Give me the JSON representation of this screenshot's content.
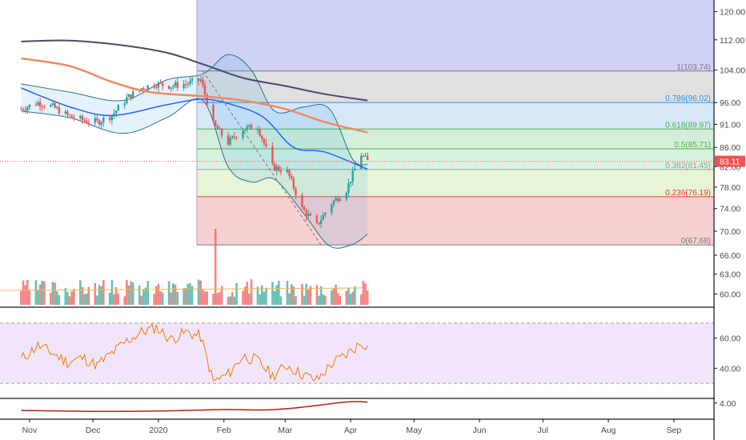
{
  "chart_data": [
    {
      "type": "candlestick",
      "panel": "price",
      "title": "",
      "y_scale": "log",
      "y_ticks": [
        "120.00",
        "112.00",
        "104.00",
        "96.00",
        "91.00",
        "86.00",
        "82.00",
        "78.00",
        "74.00",
        "70.00",
        "66.00",
        "63.00",
        "60.00"
      ],
      "x_ticks": [
        "Nov",
        "Dec",
        "2020",
        "Feb",
        "Mar",
        "Apr",
        "May",
        "Jun",
        "Jul",
        "Aug",
        "Sep"
      ],
      "last_price": {
        "label": "83.11",
        "value": 83.11,
        "color": "#ef5350"
      },
      "ohlc_closes": [
        {
          "date": "2019-10-28",
          "close": 94.5
        },
        {
          "date": "2019-11-05",
          "close": 96.0
        },
        {
          "date": "2019-11-12",
          "close": 95.0
        },
        {
          "date": "2019-11-19",
          "close": 93.0
        },
        {
          "date": "2019-11-26",
          "close": 92.0
        },
        {
          "date": "2019-12-03",
          "close": 91.5
        },
        {
          "date": "2019-12-10",
          "close": 93.0
        },
        {
          "date": "2019-12-17",
          "close": 97.0
        },
        {
          "date": "2019-12-24",
          "close": 99.5
        },
        {
          "date": "2019-12-31",
          "close": 100.5
        },
        {
          "date": "2020-01-07",
          "close": 100.0
        },
        {
          "date": "2020-01-14",
          "close": 100.5
        },
        {
          "date": "2020-01-21",
          "close": 101.5
        },
        {
          "date": "2020-01-27",
          "close": 91.0
        },
        {
          "date": "2020-02-03",
          "close": 87.0
        },
        {
          "date": "2020-02-10",
          "close": 90.0
        },
        {
          "date": "2020-02-17",
          "close": 90.5
        },
        {
          "date": "2020-02-24",
          "close": 82.0
        },
        {
          "date": "2020-03-02",
          "close": 81.0
        },
        {
          "date": "2020-03-09",
          "close": 74.0
        },
        {
          "date": "2020-03-16",
          "close": 71.0
        },
        {
          "date": "2020-03-23",
          "close": 75.0
        },
        {
          "date": "2020-03-30",
          "close": 77.5
        },
        {
          "date": "2020-04-06",
          "close": 84.5
        },
        {
          "date": "2020-04-09",
          "close": 83.11
        }
      ],
      "bollinger_upper": [
        {
          "date": "2019-10-28",
          "value": 100.5
        },
        {
          "date": "2019-11-20",
          "value": 98.5
        },
        {
          "date": "2019-12-15",
          "value": 96.5
        },
        {
          "date": "2020-01-05",
          "value": 101.5
        },
        {
          "date": "2020-01-22",
          "value": 103.0
        },
        {
          "date": "2020-02-03",
          "value": 108.0
        },
        {
          "date": "2020-02-14",
          "value": 104.0
        },
        {
          "date": "2020-02-25",
          "value": 94.0
        },
        {
          "date": "2020-03-10",
          "value": 95.0
        },
        {
          "date": "2020-03-22",
          "value": 94.5
        },
        {
          "date": "2020-04-02",
          "value": 83.5
        },
        {
          "date": "2020-04-09",
          "value": 82.5
        }
      ],
      "bollinger_lower": [
        {
          "date": "2019-10-28",
          "value": 94.0
        },
        {
          "date": "2019-11-20",
          "value": 92.5
        },
        {
          "date": "2019-12-15",
          "value": 89.0
        },
        {
          "date": "2020-01-05",
          "value": 92.5
        },
        {
          "date": "2020-01-22",
          "value": 96.5
        },
        {
          "date": "2020-02-03",
          "value": 82.0
        },
        {
          "date": "2020-02-14",
          "value": 79.0
        },
        {
          "date": "2020-02-25",
          "value": 79.5
        },
        {
          "date": "2020-03-10",
          "value": 73.0
        },
        {
          "date": "2020-03-22",
          "value": 67.5
        },
        {
          "date": "2020-04-02",
          "value": 67.8
        },
        {
          "date": "2020-04-09",
          "value": 69.5
        }
      ],
      "ma_long": [
        {
          "date": "2019-10-28",
          "value": 111.5
        },
        {
          "date": "2019-11-20",
          "value": 111.8
        },
        {
          "date": "2019-12-15",
          "value": 110.5
        },
        {
          "date": "2020-01-05",
          "value": 108.5
        },
        {
          "date": "2020-01-22",
          "value": 105.5
        },
        {
          "date": "2020-02-10",
          "value": 102.0
        },
        {
          "date": "2020-03-01",
          "value": 100.0
        },
        {
          "date": "2020-03-20",
          "value": 98.0
        },
        {
          "date": "2020-04-09",
          "value": 96.5
        }
      ],
      "ma_mid": [
        {
          "date": "2019-10-28",
          "value": 107.0
        },
        {
          "date": "2019-11-20",
          "value": 105.0
        },
        {
          "date": "2019-12-10",
          "value": 101.0
        },
        {
          "date": "2019-12-28",
          "value": 98.5
        },
        {
          "date": "2020-01-22",
          "value": 97.5
        },
        {
          "date": "2020-02-10",
          "value": 96.5
        },
        {
          "date": "2020-03-01",
          "value": 94.5
        },
        {
          "date": "2020-03-20",
          "value": 91.5
        },
        {
          "date": "2020-04-09",
          "value": 89.2
        }
      ],
      "ma_short": [
        {
          "date": "2019-10-28",
          "value": 99.5
        },
        {
          "date": "2019-11-20",
          "value": 95.0
        },
        {
          "date": "2019-12-10",
          "value": 93.0
        },
        {
          "date": "2020-01-05",
          "value": 95.5
        },
        {
          "date": "2020-01-22",
          "value": 96.8
        },
        {
          "date": "2020-02-05",
          "value": 95.5
        },
        {
          "date": "2020-02-20",
          "value": 92.5
        },
        {
          "date": "2020-03-05",
          "value": 86.0
        },
        {
          "date": "2020-03-20",
          "value": 85.0
        },
        {
          "date": "2020-04-09",
          "value": 81.5
        }
      ],
      "fib_retracement": {
        "levels": [
          {
            "label": "1(103.74)",
            "value": 103.74,
            "color": "#787b86",
            "fill": "#e0e0e0"
          },
          {
            "label": "0.786(96.02)",
            "value": 96.02,
            "color": "#2196f3",
            "fill": "#d6e8f5"
          },
          {
            "label": "0.618(89.97)",
            "value": 89.97,
            "color": "#4caf50",
            "fill": "#d4efd9"
          },
          {
            "label": "0.5(85.71)",
            "value": 85.71,
            "color": "#4caf50",
            "fill": "#d9f2df"
          },
          {
            "label": "0.382(81.45)",
            "value": 81.45,
            "color": "#9e9e9e",
            "fill": "#e8f4d6"
          },
          {
            "label": "0.236(76.19)",
            "value": 76.19,
            "color": "#e53935",
            "fill": "#f6d1d1"
          },
          {
            "label": "0(67.68)",
            "value": 67.68,
            "color": "#787b86",
            "fill": ""
          }
        ],
        "top_zone_fill": "#d0d2f4"
      }
    },
    {
      "type": "bar",
      "panel": "volume",
      "up_color": "#26a69a",
      "down_color": "#ef5350"
    },
    {
      "type": "line",
      "panel": "oscillator",
      "y_ticks": [
        "60.00",
        "40.00"
      ],
      "upper_band": 70,
      "lower_band": 30,
      "band_fill": "#f1e5fc",
      "line_color": "#f57c00",
      "values": [
        {
          "date": "2019-10-28",
          "value": 46
        },
        {
          "date": "2019-11-05",
          "value": 55
        },
        {
          "date": "2019-11-12",
          "value": 50
        },
        {
          "date": "2019-11-19",
          "value": 44
        },
        {
          "date": "2019-11-26",
          "value": 47
        },
        {
          "date": "2019-12-03",
          "value": 42
        },
        {
          "date": "2019-12-10",
          "value": 50
        },
        {
          "date": "2019-12-17",
          "value": 58
        },
        {
          "date": "2019-12-24",
          "value": 64
        },
        {
          "date": "2019-12-31",
          "value": 67
        },
        {
          "date": "2020-01-07",
          "value": 59
        },
        {
          "date": "2020-01-14",
          "value": 64
        },
        {
          "date": "2020-01-21",
          "value": 61
        },
        {
          "date": "2020-01-27",
          "value": 31
        },
        {
          "date": "2020-02-03",
          "value": 36
        },
        {
          "date": "2020-02-10",
          "value": 48
        },
        {
          "date": "2020-02-17",
          "value": 45
        },
        {
          "date": "2020-02-24",
          "value": 35
        },
        {
          "date": "2020-03-02",
          "value": 42
        },
        {
          "date": "2020-03-09",
          "value": 36
        },
        {
          "date": "2020-03-16",
          "value": 32
        },
        {
          "date": "2020-03-23",
          "value": 43
        },
        {
          "date": "2020-03-30",
          "value": 49
        },
        {
          "date": "2020-04-06",
          "value": 57
        },
        {
          "date": "2020-04-09",
          "value": 55
        }
      ]
    },
    {
      "type": "line",
      "panel": "indicator",
      "y_ticks": [
        "4.00"
      ],
      "line_color": "#b71c1c",
      "values": [
        {
          "date": "2019-10-28",
          "value": 2.4
        },
        {
          "date": "2019-12-01",
          "value": 2.2
        },
        {
          "date": "2020-01-05",
          "value": 2.3
        },
        {
          "date": "2020-02-01",
          "value": 2.6
        },
        {
          "date": "2020-02-20",
          "value": 2.5
        },
        {
          "date": "2020-03-05",
          "value": 2.9
        },
        {
          "date": "2020-03-20",
          "value": 3.7
        },
        {
          "date": "2020-04-01",
          "value": 4.3
        },
        {
          "date": "2020-04-09",
          "value": 4.2
        }
      ]
    }
  ]
}
